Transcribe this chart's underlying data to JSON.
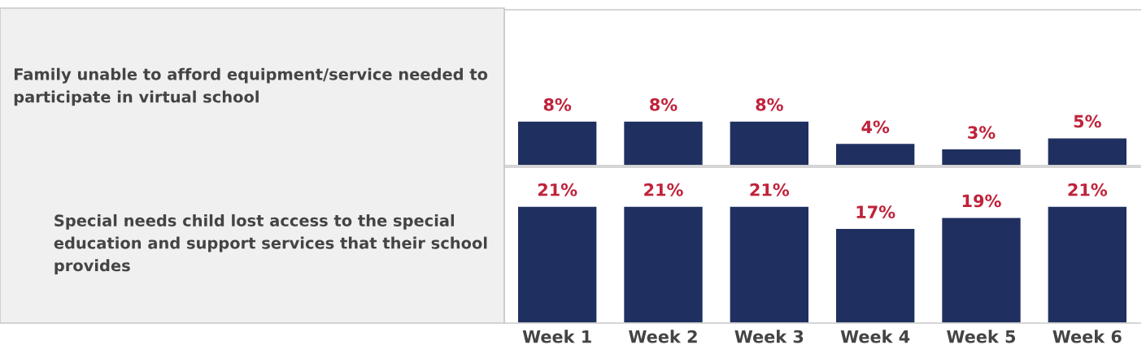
{
  "chart_data": [
    {
      "type": "bar",
      "title": "Family unable to afford equipment/service needed to participate in virtual school",
      "categories": [
        null,
        null,
        null,
        null,
        null,
        null
      ],
      "values": [
        8,
        8,
        8,
        4,
        3,
        5
      ],
      "value_labels": [
        "8%",
        "8%",
        "8%",
        "4%",
        "3%",
        "5%"
      ],
      "color": "#1f3060",
      "ylim": [
        0,
        28
      ]
    },
    {
      "type": "bar",
      "title": "Special needs child lost access to the special education and support services that their school provides",
      "categories": [
        "Week 1",
        "Week 2",
        "Week 3",
        "Week 4",
        "Week 5",
        "Week 6"
      ],
      "values": [
        21,
        21,
        21,
        17,
        19,
        21
      ],
      "value_labels": [
        "21%",
        "21%",
        "21%",
        "17%",
        "19%",
        "21%"
      ],
      "color": "#1f3060",
      "ylim": [
        0,
        28
      ],
      "tick_labels": "x"
    }
  ]
}
